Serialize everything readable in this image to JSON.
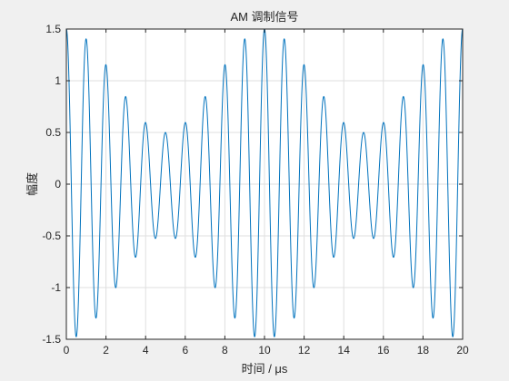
{
  "chart_data": {
    "type": "line",
    "title": "AM 调制信号",
    "xlabel": "时间 / μs",
    "ylabel": "幅度",
    "xlim": [
      0,
      20
    ],
    "ylim": [
      -1.5,
      1.5
    ],
    "xticks": [
      "0",
      "2",
      "4",
      "6",
      "8",
      "10",
      "12",
      "14",
      "16",
      "18",
      "20"
    ],
    "yticks": [
      "1.5",
      "1",
      "0.5",
      "0",
      "-0.5",
      "-1",
      "-1.5"
    ],
    "grid": true,
    "series": [
      {
        "color": "#0072bd",
        "carrier_frequency_MHz": 1,
        "modulation_frequency_MHz": 0.1,
        "modulation_index": 0.5,
        "formula": "(1 + 0.5*cos(2*pi*0.1*t)) * cos(2*pi*1*t)",
        "x_range": [
          0,
          20
        ],
        "peaks": [
          {
            "x": 0,
            "y": 1.5
          },
          {
            "x": 1,
            "y": 1.4
          },
          {
            "x": 2,
            "y": 1.15
          },
          {
            "x": 3,
            "y": 0.85
          },
          {
            "x": 4,
            "y": 0.6
          },
          {
            "x": 5,
            "y": 0.5
          },
          {
            "x": 6,
            "y": 0.6
          },
          {
            "x": 7,
            "y": 0.85
          },
          {
            "x": 8,
            "y": 1.15
          },
          {
            "x": 9,
            "y": 1.4
          },
          {
            "x": 10,
            "y": 1.5
          },
          {
            "x": 11,
            "y": 1.4
          },
          {
            "x": 12,
            "y": 1.15
          },
          {
            "x": 13,
            "y": 0.85
          },
          {
            "x": 14,
            "y": 0.6
          },
          {
            "x": 15,
            "y": 0.5
          },
          {
            "x": 16,
            "y": 0.6
          },
          {
            "x": 17,
            "y": 0.85
          },
          {
            "x": 18,
            "y": 1.15
          },
          {
            "x": 19,
            "y": 1.4
          },
          {
            "x": 20,
            "y": 1.5
          }
        ]
      }
    ]
  }
}
